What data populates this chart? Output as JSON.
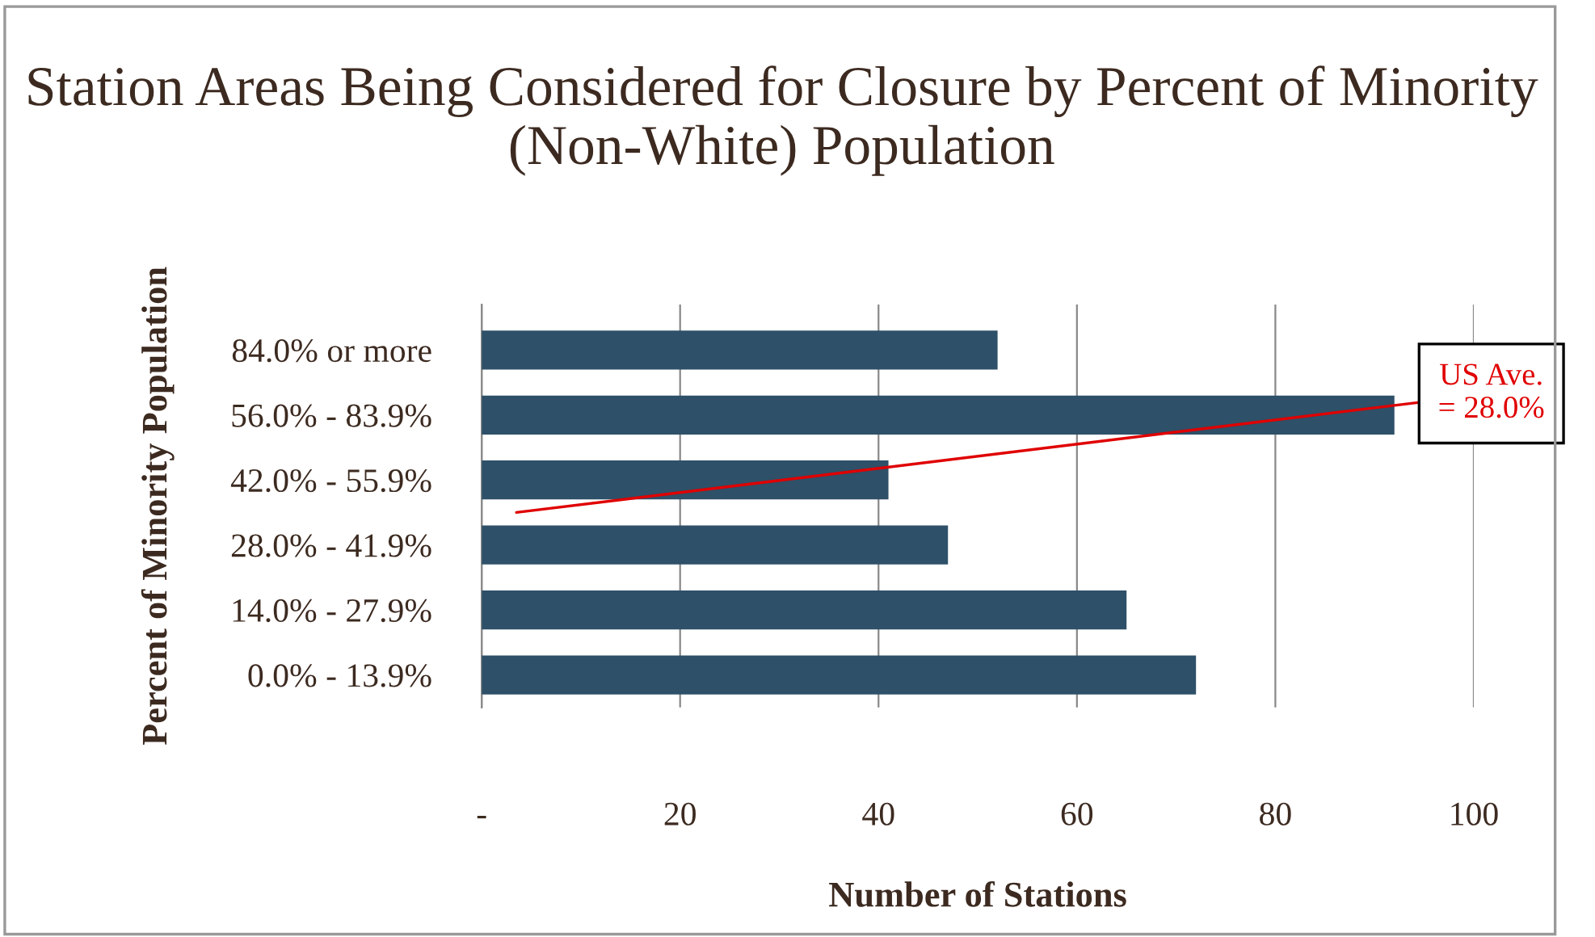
{
  "chart_data": {
    "type": "bar",
    "orientation": "horizontal",
    "title": "Station Areas Being Considered for Closure by Percent of Minority (Non-White) Population",
    "xlabel": "Number of Stations",
    "ylabel": "Percent of Minority Population",
    "categories": [
      "84.0% or more",
      "56.0% - 83.9%",
      "42.0% - 55.9%",
      "28.0% - 41.9%",
      "14.0% - 27.9%",
      "0.0% - 13.9%"
    ],
    "values": [
      52,
      92,
      41,
      47,
      65,
      72
    ],
    "color": "#2e5068",
    "xlim": [
      0,
      100
    ],
    "xticks": [
      {
        "value": 0,
        "label": "-"
      },
      20,
      40,
      60,
      80,
      100
    ],
    "grid": "x",
    "annotations": [
      "US Ave.\n= 28.0%"
    ]
  }
}
